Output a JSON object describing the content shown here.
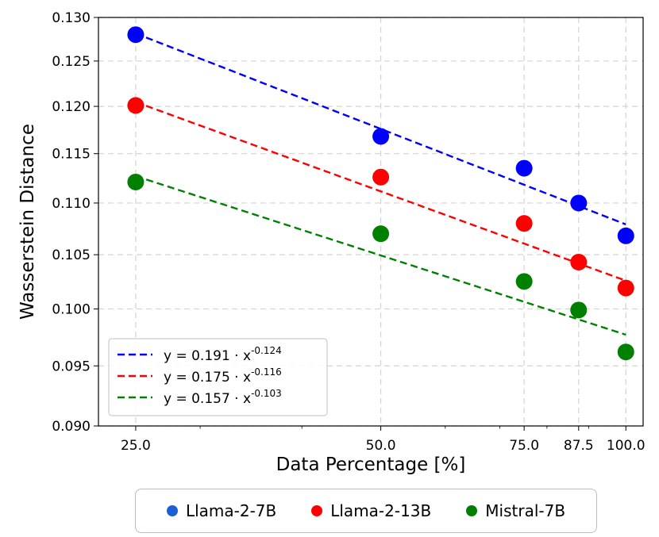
{
  "chart_data": {
    "type": "scatter",
    "xlabel": "Data Percentage [%]",
    "ylabel": "Wasserstein Distance",
    "x_scale": "log",
    "xlim": [
      22.5,
      105
    ],
    "ylim": [
      0.09,
      0.13
    ],
    "y_scale": "log",
    "grid": true,
    "x_ticks": [
      25,
      50,
      75,
      87.5,
      100
    ],
    "x_tick_labels": [
      "25.0",
      "50.0",
      "75.0",
      "87.5",
      "100.0"
    ],
    "y_ticks": [
      0.09,
      0.095,
      0.1,
      0.105,
      0.11,
      0.115,
      0.12,
      0.125,
      0.13
    ],
    "y_tick_labels": [
      "0.090",
      "0.095",
      "0.100",
      "0.105",
      "0.110",
      "0.115",
      "0.120",
      "0.125",
      "0.130"
    ],
    "x": [
      25,
      50,
      75,
      87.5,
      100
    ],
    "series": [
      {
        "name": "Llama-2-7B",
        "color": "#0000ff",
        "values": [
          0.128,
          0.1168,
          0.1135,
          0.11,
          0.1068
        ],
        "fit": {
          "a": 0.191,
          "b": -0.124,
          "label": "y = 0.191 · x",
          "exponent": "-0.124"
        }
      },
      {
        "name": "Llama-2-13B",
        "color": "#ff0000",
        "values": [
          0.1201,
          0.1126,
          0.108,
          0.1043,
          0.1019
        ],
        "fit": {
          "a": 0.175,
          "b": -0.116,
          "label": "y = 0.175 · x",
          "exponent": "-0.116"
        }
      },
      {
        "name": "Mistral-7B",
        "color": "#008000",
        "values": [
          0.1121,
          0.107,
          0.1025,
          0.0999,
          0.0962
        ],
        "fit": {
          "a": 0.157,
          "b": -0.103,
          "label": "y = 0.157 · x",
          "exponent": "-0.103"
        }
      }
    ],
    "inner_legend_position": "lower-left",
    "outer_legend_position": "bottom-center"
  },
  "legend_dot_colors": {
    "Llama-2-7B": "#1a5fd6",
    "Llama-2-13B": "#ff0000",
    "Mistral-7B": "#008000"
  }
}
